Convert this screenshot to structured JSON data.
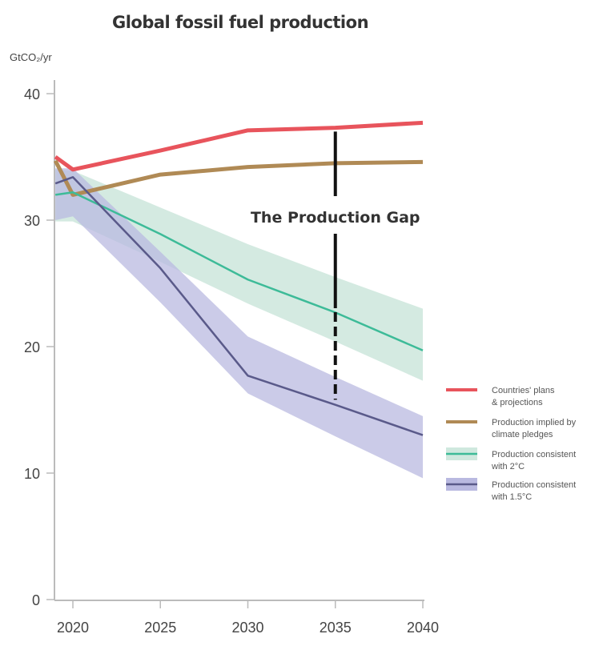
{
  "chart_data": {
    "type": "line",
    "title": "Global fossil fuel production",
    "ylabel": "GtCO₂/yr",
    "xlabel": "",
    "xlim": [
      2019,
      2040
    ],
    "ylim": [
      0,
      40
    ],
    "xticks": [
      "2020",
      "2025",
      "2030",
      "2035",
      "2040"
    ],
    "yticks": [
      "0",
      "10",
      "20",
      "30",
      "40"
    ],
    "grid": false,
    "legend_position": "right",
    "x": [
      2019,
      2020,
      2025,
      2030,
      2035,
      2040
    ],
    "series": [
      {
        "name": "Countries' plans & projections",
        "legend_lines": [
          "Countries' plans",
          "& projections"
        ],
        "color": "#e8545c",
        "values": [
          35.0,
          34.0,
          35.5,
          37.1,
          37.3,
          37.7
        ]
      },
      {
        "name": "Production implied by climate pledges",
        "legend_lines": [
          "Production implied by",
          " climate pledges"
        ],
        "color": "#b08a55",
        "values": [
          34.7,
          32.0,
          33.6,
          34.2,
          34.5,
          34.6
        ]
      },
      {
        "name": "Production consistent with 2°C",
        "legend_lines": [
          "Production consistent",
          "with 2°C"
        ],
        "color": "#3dbb98",
        "band_color": "#cfe8de",
        "values": [
          32.0,
          32.2,
          28.9,
          25.3,
          22.7,
          19.7
        ],
        "band_upper": [
          34.0,
          33.9,
          31.0,
          28.1,
          25.5,
          23.0
        ],
        "band_lower": [
          29.9,
          29.9,
          26.7,
          23.4,
          20.4,
          17.3
        ]
      },
      {
        "name": "Production consistent with 1.5°C",
        "legend_lines": [
          "Production consistent",
          "with 1.5°C"
        ],
        "color": "#5a5a8a",
        "band_color": "#b9b9e0",
        "values": [
          32.9,
          33.4,
          26.2,
          17.7,
          15.4,
          13.0
        ],
        "band_upper": [
          34.1,
          34.1,
          27.5,
          20.8,
          17.6,
          14.5
        ],
        "band_lower": [
          30.0,
          30.3,
          23.5,
          16.3,
          12.9,
          9.6
        ]
      }
    ],
    "annotations": [
      {
        "text": "The Production Gap",
        "x": 2035,
        "y_from": 37.0,
        "y_to": 15.8
      }
    ]
  }
}
